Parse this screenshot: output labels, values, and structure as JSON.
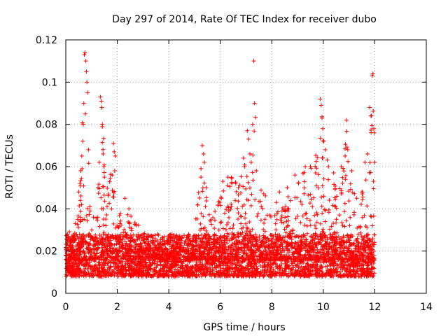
{
  "chart_data": {
    "type": "scatter",
    "title": "Day 297 of 2014, Rate Of TEC Index for receiver dubo",
    "xlabel": "GPS time / hours",
    "ylabel": "ROTI / TECUs",
    "xlim": [
      0,
      14
    ],
    "ylim": [
      0,
      0.12
    ],
    "grid": true,
    "x_ticks": [
      0,
      2,
      4,
      6,
      8,
      10,
      12,
      14
    ],
    "x_tick_labels": [
      "0",
      "2",
      "4",
      "6",
      "8",
      "10",
      "12",
      "14"
    ],
    "y_ticks": [
      0,
      0.02,
      0.04,
      0.06,
      0.08,
      0.1,
      0.12
    ],
    "y_tick_labels": [
      "0",
      "0.02",
      "0.04",
      "0.06",
      "0.08",
      "0.1",
      "0.12"
    ],
    "marker": "+",
    "color": "#ff0000",
    "background_band": {
      "x_range": [
        0,
        12
      ],
      "y_min": 0.008,
      "y_max": 0.028
    },
    "envelope": [
      [
        0.0,
        0.028
      ],
      [
        0.2,
        0.03
      ],
      [
        0.4,
        0.035
      ],
      [
        0.6,
        0.062
      ],
      [
        0.7,
        0.113
      ],
      [
        0.8,
        0.1
      ],
      [
        0.9,
        0.06
      ],
      [
        1.0,
        0.04
      ],
      [
        1.2,
        0.036
      ],
      [
        1.4,
        0.092
      ],
      [
        1.5,
        0.066
      ],
      [
        1.6,
        0.05
      ],
      [
        1.8,
        0.06
      ],
      [
        1.9,
        0.07
      ],
      [
        2.0,
        0.04
      ],
      [
        2.3,
        0.04
      ],
      [
        2.5,
        0.037
      ],
      [
        3.0,
        0.03
      ],
      [
        3.5,
        0.026
      ],
      [
        4.0,
        0.025
      ],
      [
        4.5,
        0.027
      ],
      [
        5.0,
        0.03
      ],
      [
        5.3,
        0.07
      ],
      [
        5.5,
        0.04
      ],
      [
        6.0,
        0.048
      ],
      [
        6.3,
        0.055
      ],
      [
        6.6,
        0.055
      ],
      [
        7.0,
        0.07
      ],
      [
        7.1,
        0.077
      ],
      [
        7.3,
        0.11
      ],
      [
        7.5,
        0.06
      ],
      [
        7.8,
        0.045
      ],
      [
        8.0,
        0.042
      ],
      [
        8.5,
        0.045
      ],
      [
        9.0,
        0.052
      ],
      [
        9.3,
        0.06
      ],
      [
        9.6,
        0.06
      ],
      [
        9.9,
        0.092
      ],
      [
        10.0,
        0.08
      ],
      [
        10.2,
        0.06
      ],
      [
        10.5,
        0.057
      ],
      [
        10.8,
        0.065
      ],
      [
        10.9,
        0.082
      ],
      [
        11.0,
        0.06
      ],
      [
        11.3,
        0.045
      ],
      [
        11.6,
        0.05
      ],
      [
        11.8,
        0.086
      ],
      [
        11.9,
        0.103
      ],
      [
        12.0,
        0.076
      ]
    ],
    "points": [
      [
        0.72,
        0.113
      ],
      [
        0.75,
        0.114
      ],
      [
        0.78,
        0.11
      ],
      [
        0.8,
        0.105
      ],
      [
        0.82,
        0.1
      ],
      [
        0.85,
        0.095
      ],
      [
        0.7,
        0.09
      ],
      [
        0.76,
        0.085
      ],
      [
        0.68,
        0.08
      ],
      [
        0.66,
        0.072
      ],
      [
        0.62,
        0.065
      ],
      [
        0.88,
        0.068
      ],
      [
        0.58,
        0.058
      ],
      [
        0.55,
        0.052
      ],
      [
        0.5,
        0.048
      ],
      [
        1.35,
        0.093
      ],
      [
        1.38,
        0.091
      ],
      [
        1.4,
        0.088
      ],
      [
        1.42,
        0.08
      ],
      [
        1.45,
        0.066
      ],
      [
        1.48,
        0.06
      ],
      [
        1.5,
        0.055
      ],
      [
        1.3,
        0.062
      ],
      [
        1.25,
        0.05
      ],
      [
        1.85,
        0.071
      ],
      [
        1.88,
        0.067
      ],
      [
        1.92,
        0.065
      ],
      [
        1.9,
        0.058
      ],
      [
        1.8,
        0.056
      ],
      [
        2.3,
        0.045
      ],
      [
        2.45,
        0.04
      ],
      [
        5.3,
        0.07
      ],
      [
        5.35,
        0.066
      ],
      [
        5.38,
        0.062
      ],
      [
        5.25,
        0.055
      ],
      [
        5.45,
        0.05
      ],
      [
        6.1,
        0.053
      ],
      [
        6.3,
        0.055
      ],
      [
        6.45,
        0.052
      ],
      [
        6.6,
        0.052
      ],
      [
        6.7,
        0.05
      ],
      [
        6.9,
        0.064
      ],
      [
        6.95,
        0.06
      ],
      [
        7.05,
        0.077
      ],
      [
        7.1,
        0.073
      ],
      [
        7.15,
        0.066
      ],
      [
        7.2,
        0.062
      ],
      [
        7.3,
        0.11
      ],
      [
        7.33,
        0.09
      ],
      [
        7.4,
        0.058
      ],
      [
        8.3,
        0.048
      ],
      [
        8.6,
        0.05
      ],
      [
        8.9,
        0.056
      ],
      [
        9.3,
        0.06
      ],
      [
        9.5,
        0.06
      ],
      [
        9.7,
        0.057
      ],
      [
        9.88,
        0.092
      ],
      [
        9.92,
        0.089
      ],
      [
        9.95,
        0.083
      ],
      [
        9.98,
        0.078
      ],
      [
        10.02,
        0.072
      ],
      [
        10.08,
        0.068
      ],
      [
        10.2,
        0.06
      ],
      [
        10.4,
        0.057
      ],
      [
        10.7,
        0.06
      ],
      [
        10.85,
        0.065
      ],
      [
        10.9,
        0.082
      ],
      [
        10.95,
        0.068
      ],
      [
        11.1,
        0.058
      ],
      [
        11.3,
        0.045
      ],
      [
        11.5,
        0.048
      ],
      [
        11.62,
        0.062
      ],
      [
        11.72,
        0.066
      ],
      [
        11.8,
        0.088
      ],
      [
        11.85,
        0.084
      ],
      [
        11.9,
        0.103
      ],
      [
        11.93,
        0.104
      ],
      [
        11.96,
        0.078
      ],
      [
        11.98,
        0.076
      ],
      [
        12.0,
        0.062
      ],
      [
        11.95,
        0.053
      ]
    ]
  }
}
